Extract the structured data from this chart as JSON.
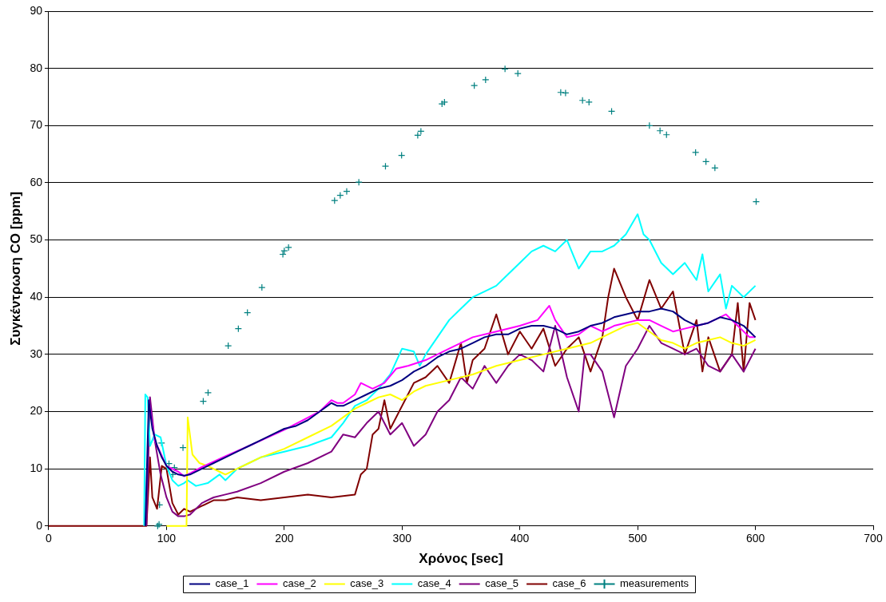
{
  "chart_data": {
    "type": "line",
    "xlabel": "Χρόνος [sec]",
    "ylabel": "Συγκέντρωση CO [ppm]",
    "xlim": [
      0,
      700
    ],
    "xticks": [
      0,
      100,
      200,
      300,
      400,
      500,
      600,
      700
    ],
    "ylim": [
      0,
      90
    ],
    "yticks": [
      0,
      10,
      20,
      30,
      40,
      50,
      60,
      70,
      80,
      90
    ],
    "grid": "y",
    "legend": "bottom",
    "marker": "none",
    "line_style": "solid",
    "series": [
      {
        "name": "case_1",
        "color": "#000080",
        "x": [
          82,
          85,
          88,
          92,
          96,
          100,
          105,
          110,
          115,
          120,
          130,
          140,
          150,
          160,
          170,
          180,
          190,
          200,
          210,
          220,
          230,
          240,
          245,
          250,
          260,
          270,
          280,
          290,
          300,
          310,
          320,
          330,
          340,
          350,
          360,
          370,
          380,
          390,
          400,
          410,
          420,
          430,
          440,
          450,
          460,
          470,
          480,
          490,
          500,
          510,
          520,
          530,
          540,
          550,
          560,
          570,
          580,
          590,
          595,
          600
        ],
        "values": [
          0,
          22,
          17,
          14,
          12,
          10.5,
          9.5,
          9,
          8.8,
          9,
          10,
          11,
          12,
          13,
          14,
          15,
          16,
          17,
          17.5,
          18.5,
          20,
          21.5,
          21,
          21,
          22,
          23,
          24,
          24.5,
          25.5,
          27,
          28,
          29.5,
          30.5,
          31,
          32,
          33,
          33.5,
          33.5,
          34.5,
          35,
          35,
          34.5,
          33.5,
          34,
          35,
          35.5,
          36.5,
          37,
          37.5,
          37.5,
          38,
          37.5,
          36,
          35,
          35.5,
          36.5,
          36,
          35,
          34,
          33
        ]
      },
      {
        "name": "case_2",
        "color": "#ff00ff",
        "x": [
          85,
          90,
          100,
          110,
          115,
          120,
          130,
          150,
          170,
          200,
          230,
          240,
          245,
          250,
          260,
          265,
          275,
          285,
          295,
          305,
          320,
          340,
          360,
          380,
          400,
          415,
          425,
          430,
          440,
          450,
          460,
          470,
          480,
          490,
          500,
          510,
          520,
          530,
          540,
          550,
          560,
          570,
          575,
          585,
          595,
          600
        ],
        "values": [
          22,
          15,
          10.5,
          9.5,
          8.7,
          9.2,
          10.3,
          12.2,
          14,
          16.8,
          20,
          22,
          21.5,
          21.5,
          23,
          25,
          24,
          25,
          27.5,
          28,
          29,
          31,
          33,
          34,
          35,
          36,
          38.5,
          36,
          33,
          33.5,
          35,
          34,
          35,
          35.5,
          36,
          36,
          35,
          34,
          34.5,
          35,
          35.5,
          36.5,
          37,
          35,
          33,
          33
        ]
      },
      {
        "name": "case_3",
        "color": "#ffff00",
        "x": [
          100,
          117,
          118,
          122,
          128,
          135,
          145,
          150,
          160,
          170,
          180,
          200,
          220,
          240,
          250,
          260,
          270,
          280,
          290,
          300,
          310,
          320,
          340,
          360,
          380,
          400,
          420,
          440,
          460,
          470,
          480,
          490,
          500,
          510,
          520,
          530,
          540,
          550,
          560,
          570,
          580,
          590,
          600
        ],
        "values": [
          0,
          0,
          19,
          12.5,
          11,
          10.5,
          9.5,
          9,
          10,
          11,
          12,
          13.5,
          15.5,
          17.5,
          19,
          20.5,
          21.5,
          22.5,
          23,
          22,
          23.5,
          24.5,
          25.5,
          26.5,
          28,
          29,
          30,
          31,
          32,
          33,
          34,
          35,
          35.5,
          34,
          32.5,
          32,
          31,
          32,
          32.5,
          33,
          32,
          31.5,
          32.5
        ]
      },
      {
        "name": "case_4",
        "color": "#00ffff",
        "x": [
          81,
          82,
          84,
          86,
          90,
          95,
          100,
          105,
          110,
          115,
          118,
          125,
          135,
          145,
          150,
          160,
          170,
          180,
          200,
          220,
          240,
          250,
          260,
          270,
          280,
          290,
          300,
          310,
          315,
          320,
          330,
          340,
          350,
          360,
          370,
          380,
          390,
          400,
          410,
          420,
          430,
          440,
          450,
          460,
          470,
          480,
          490,
          500,
          505,
          510,
          520,
          530,
          540,
          550,
          555,
          560,
          570,
          575,
          580,
          590,
          600
        ],
        "values": [
          0,
          23,
          22.5,
          14,
          16,
          15.5,
          10.5,
          8,
          7,
          7.5,
          8,
          7,
          7.5,
          9,
          8,
          10,
          11,
          12,
          13,
          14,
          15.5,
          18,
          21,
          22,
          24,
          26.5,
          31,
          30.5,
          28,
          30,
          33,
          36,
          38,
          40,
          41,
          42,
          44,
          46,
          48,
          49,
          48,
          50,
          45,
          48,
          48,
          49,
          51,
          54.5,
          51,
          50,
          46,
          44,
          46,
          43,
          47.5,
          41,
          44,
          38,
          42,
          40,
          42
        ]
      },
      {
        "name": "case_5",
        "color": "#800080",
        "x": [
          83,
          86,
          90,
          95,
          100,
          105,
          110,
          115,
          120,
          130,
          140,
          150,
          160,
          180,
          200,
          220,
          240,
          250,
          260,
          270,
          280,
          290,
          300,
          310,
          320,
          330,
          340,
          350,
          360,
          370,
          380,
          390,
          400,
          410,
          420,
          430,
          440,
          450,
          455,
          460,
          470,
          480,
          490,
          500,
          510,
          520,
          530,
          540,
          550,
          560,
          570,
          580,
          590,
          600
        ],
        "values": [
          0,
          22.5,
          15,
          9,
          5,
          2.5,
          1.7,
          1.7,
          2,
          4,
          5,
          5.5,
          6,
          7.5,
          9.5,
          11,
          13,
          16,
          15.5,
          18,
          20,
          16,
          18,
          14,
          16,
          20,
          22,
          26,
          24,
          28,
          25,
          28,
          30,
          29,
          27,
          35,
          26,
          20,
          30,
          30,
          27,
          19,
          28,
          31,
          35,
          32,
          31,
          30,
          31,
          28,
          27,
          30,
          27,
          31
        ]
      },
      {
        "name": "case_6",
        "color": "#800000",
        "x": [
          0,
          83,
          86,
          88,
          92,
          96,
          100,
          105,
          110,
          115,
          120,
          130,
          140,
          150,
          160,
          180,
          200,
          220,
          240,
          260,
          265,
          270,
          275,
          280,
          285,
          290,
          300,
          310,
          320,
          330,
          340,
          345,
          350,
          355,
          360,
          370,
          380,
          390,
          400,
          410,
          420,
          430,
          440,
          450,
          460,
          470,
          475,
          480,
          490,
          500,
          510,
          520,
          530,
          540,
          550,
          555,
          560,
          570,
          580,
          585,
          590,
          595,
          600
        ],
        "values": [
          0,
          0,
          12,
          5,
          3,
          10.5,
          10,
          4,
          2,
          3,
          2.5,
          3.5,
          4.5,
          4.5,
          5,
          4.5,
          5,
          5.5,
          5,
          5.5,
          9,
          10,
          16,
          17,
          22,
          17,
          21,
          25,
          26,
          28,
          25,
          28.5,
          32,
          25,
          29,
          31,
          37,
          30,
          34,
          31,
          34.5,
          28,
          31,
          33,
          27,
          33,
          40,
          45,
          40,
          36,
          43,
          38,
          41,
          30,
          36,
          27,
          33,
          27,
          30,
          39,
          27,
          39,
          36
        ]
      },
      {
        "name": "measurements",
        "type": "scatter",
        "color": "#008080",
        "marker": "cross",
        "x": [
          92.5,
          93.7,
          94.1,
          95.8,
          102.1,
          105.3,
          106.7,
          114,
          131.2,
          135.3,
          152.4,
          161,
          168.7,
          181,
          198.8,
          200,
          203.6,
          242.7,
          247.5,
          253,
          263.3,
          285.9,
          299.6,
          313.3,
          316,
          333.9,
          336,
          361.3,
          370.9,
          387.4,
          398.3,
          434.7,
          438.8,
          453.2,
          458.7,
          477.9,
          510,
          519,
          524.5,
          549.2,
          558,
          565.6,
          600.6
        ],
        "values": [
          0,
          0.3,
          3.7,
          14.5,
          10.9,
          9,
          10.2,
          13.7,
          21.8,
          23.3,
          31.5,
          34.5,
          37.3,
          41.7,
          47.5,
          48.1,
          48.7,
          56.9,
          57.8,
          58.5,
          60.1,
          62.9,
          64.8,
          68.3,
          69,
          73.8,
          74.1,
          77,
          78,
          79.9,
          79.1,
          75.8,
          75.7,
          74.4,
          74.1,
          72.5,
          70,
          69.1,
          68.4,
          65.3,
          63.7,
          62.6,
          56.7
        ]
      }
    ]
  }
}
